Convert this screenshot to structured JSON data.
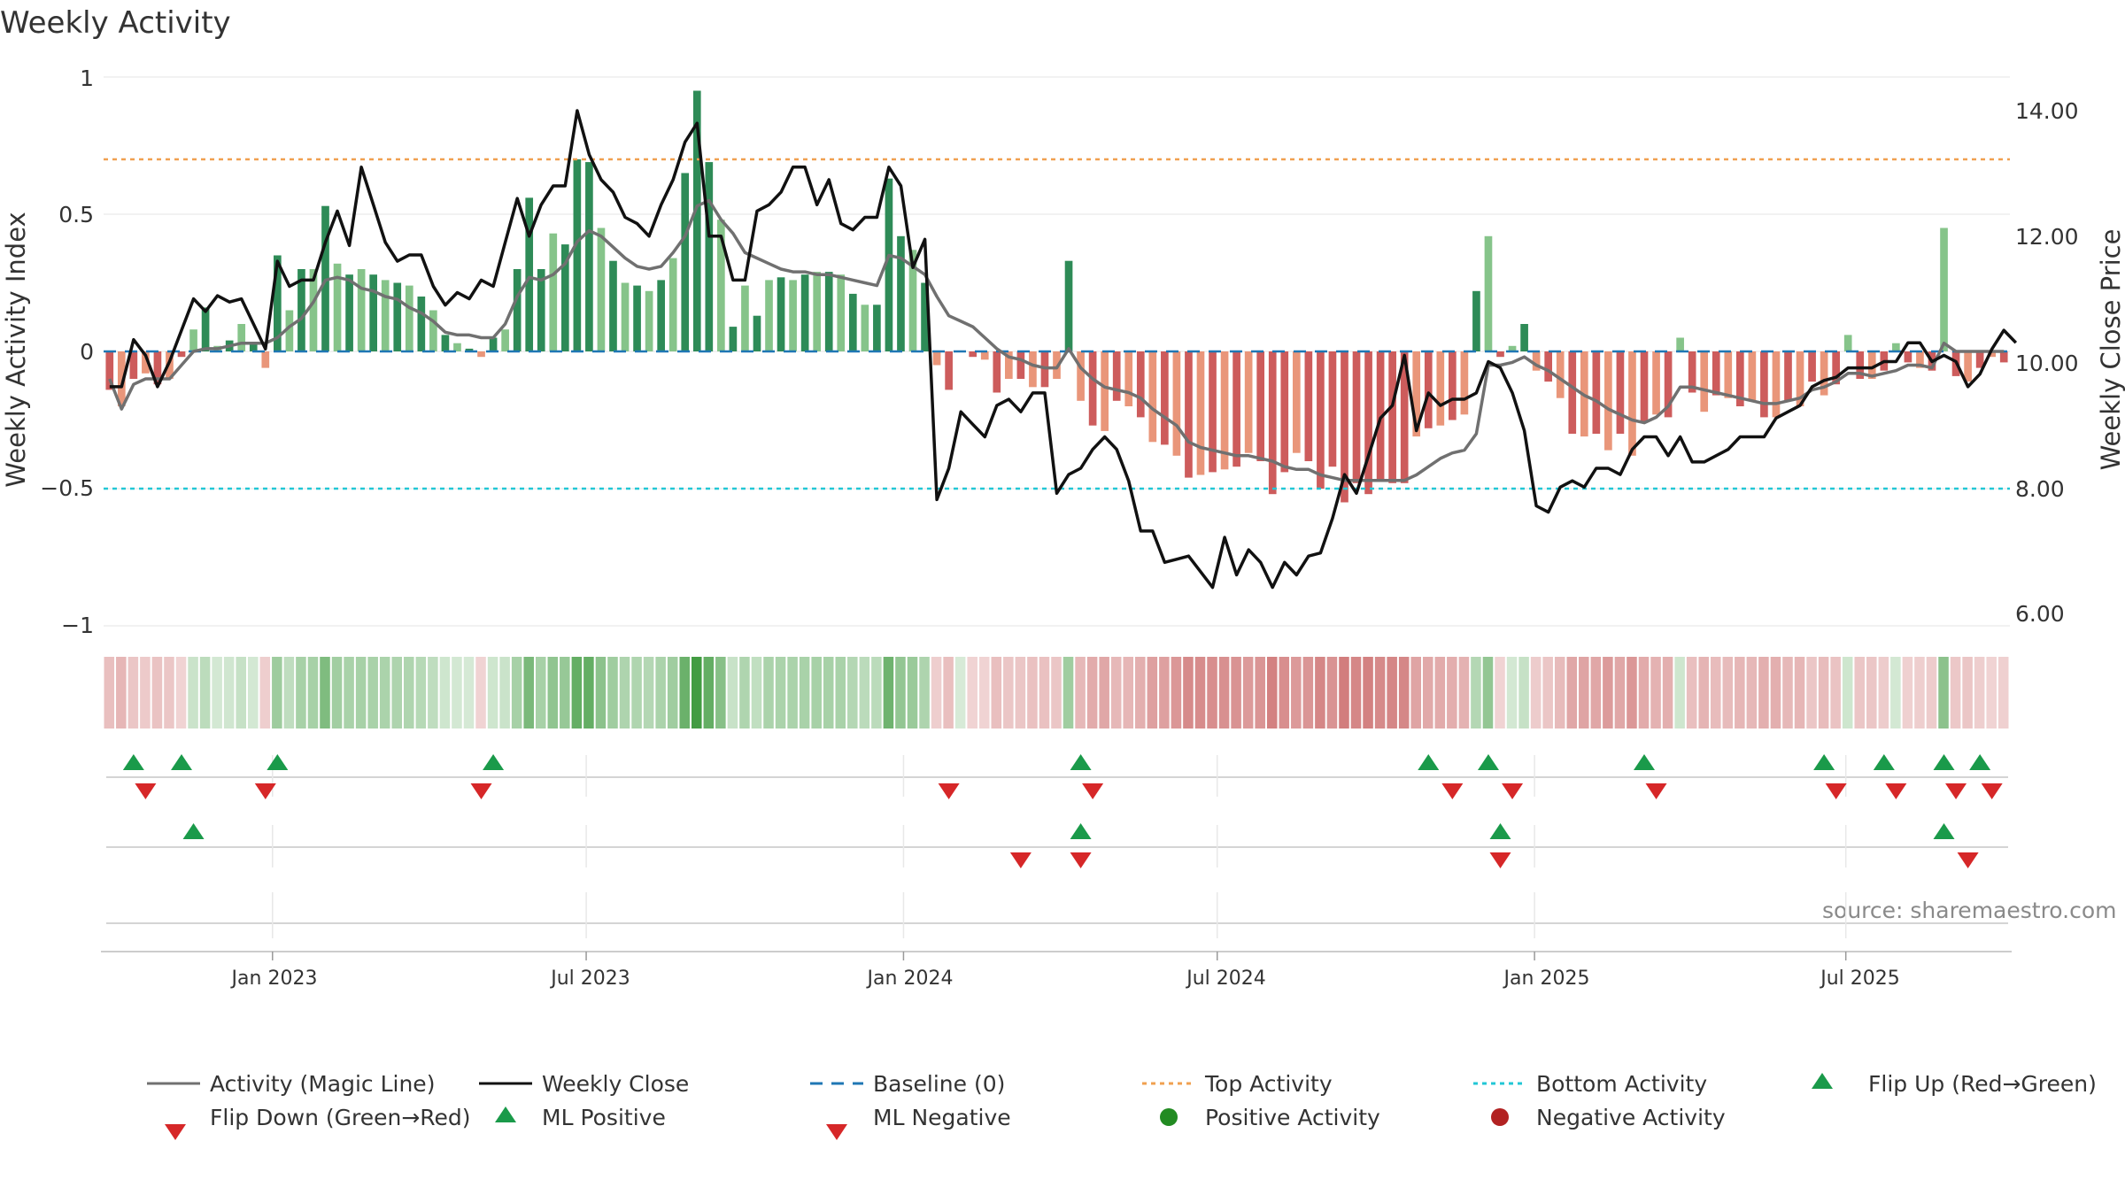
{
  "colors": {
    "pos_dark": "#2e8b57",
    "pos_light": "#86c48a",
    "neg_dark": "#cd5c5c",
    "neg_light": "#e9967a",
    "magic": "#707070",
    "close": "#111111",
    "baseline": "#1f77b4",
    "top": "#f0a050",
    "bottom": "#22c7d6",
    "flip_up": "#1a9a4a",
    "flip_down": "#d62728",
    "pos_dot": "#228b22",
    "neg_dot": "#b22222"
  },
  "chart_data": {
    "type": "bar",
    "title": "Weekly Activity",
    "xlabel": "",
    "ylabel": "Weekly Activity Index",
    "ylabel_right": "Weekly Close Price",
    "ylim": [
      -1,
      1
    ],
    "ylim_right": [
      6.0,
      14.0
    ],
    "y_ticks": [
      "1",
      "0.5",
      "0",
      "−0.5",
      "−1"
    ],
    "y_ticks_right": [
      "14.00",
      "12.00",
      "10.00",
      "8.00",
      "6.00"
    ],
    "x_ticks": [
      "Jan 2023",
      "Jul 2023",
      "Jan 2024",
      "Jul 2024",
      "Jan 2025",
      "Jul 2025"
    ],
    "x_range_weeks": [
      0,
      158
    ],
    "x_tick_weeks": [
      14,
      40,
      66.3,
      92.3,
      118.6,
      144.4
    ],
    "top_activity": 0.7,
    "bottom_activity": -0.5,
    "activity": [
      -0.14,
      -0.2,
      -0.1,
      -0.08,
      -0.12,
      -0.1,
      -0.02,
      0.08,
      0.16,
      0.02,
      0.04,
      0.1,
      0.03,
      -0.06,
      0.35,
      0.15,
      0.3,
      0.3,
      0.53,
      0.32,
      0.28,
      0.3,
      0.28,
      0.26,
      0.25,
      0.24,
      0.2,
      0.15,
      0.06,
      0.03,
      0.01,
      -0.02,
      0.05,
      0.08,
      0.3,
      0.56,
      0.3,
      0.43,
      0.39,
      0.7,
      0.69,
      0.45,
      0.33,
      0.25,
      0.24,
      0.22,
      0.26,
      0.34,
      0.65,
      0.95,
      0.69,
      0.48,
      0.09,
      0.24,
      0.13,
      0.26,
      0.27,
      0.26,
      0.28,
      0.29,
      0.29,
      0.28,
      0.21,
      0.17,
      0.17,
      0.63,
      0.42,
      0.37,
      0.25,
      -0.05,
      -0.14,
      0.0,
      -0.02,
      -0.03,
      -0.15,
      -0.1,
      -0.1,
      -0.13,
      -0.13,
      -0.1,
      0.33,
      -0.18,
      -0.27,
      -0.29,
      -0.18,
      -0.2,
      -0.24,
      -0.33,
      -0.34,
      -0.38,
      -0.46,
      -0.45,
      -0.44,
      -0.43,
      -0.42,
      -0.37,
      -0.4,
      -0.52,
      -0.44,
      -0.37,
      -0.4,
      -0.5,
      -0.42,
      -0.55,
      -0.48,
      -0.52,
      -0.47,
      -0.48,
      -0.48,
      -0.31,
      -0.28,
      -0.27,
      -0.25,
      -0.23,
      0.22,
      0.42,
      -0.02,
      0.02,
      0.1,
      -0.07,
      -0.11,
      -0.17,
      -0.3,
      -0.31,
      -0.3,
      -0.36,
      -0.3,
      -0.38,
      -0.26,
      -0.23,
      -0.24,
      0.05,
      -0.15,
      -0.22,
      -0.16,
      -0.17,
      -0.2,
      -0.18,
      -0.24,
      -0.24,
      -0.18,
      -0.2,
      -0.11,
      -0.16,
      -0.12,
      0.06,
      -0.1,
      -0.1,
      -0.07,
      0.03,
      -0.04,
      -0.06,
      -0.07,
      0.45,
      -0.09,
      -0.11,
      -0.06,
      -0.02,
      -0.04
    ],
    "magic_line": [
      -0.1,
      -0.21,
      -0.12,
      -0.1,
      -0.1,
      -0.1,
      -0.05,
      0.0,
      0.01,
      0.01,
      0.02,
      0.03,
      0.03,
      0.03,
      0.05,
      0.09,
      0.12,
      0.18,
      0.26,
      0.27,
      0.26,
      0.23,
      0.22,
      0.2,
      0.19,
      0.16,
      0.14,
      0.11,
      0.07,
      0.06,
      0.06,
      0.05,
      0.05,
      0.1,
      0.2,
      0.27,
      0.26,
      0.28,
      0.32,
      0.4,
      0.44,
      0.42,
      0.38,
      0.34,
      0.31,
      0.3,
      0.31,
      0.36,
      0.42,
      0.53,
      0.55,
      0.48,
      0.43,
      0.36,
      0.34,
      0.32,
      0.3,
      0.29,
      0.29,
      0.28,
      0.28,
      0.27,
      0.26,
      0.25,
      0.24,
      0.35,
      0.34,
      0.31,
      0.28,
      0.2,
      0.13,
      0.11,
      0.09,
      0.05,
      0.01,
      -0.02,
      -0.03,
      -0.05,
      -0.06,
      -0.06,
      0.01,
      -0.06,
      -0.1,
      -0.13,
      -0.14,
      -0.15,
      -0.17,
      -0.21,
      -0.24,
      -0.27,
      -0.33,
      -0.35,
      -0.36,
      -0.37,
      -0.38,
      -0.38,
      -0.39,
      -0.4,
      -0.42,
      -0.43,
      -0.43,
      -0.45,
      -0.46,
      -0.47,
      -0.47,
      -0.47,
      -0.47,
      -0.47,
      -0.47,
      -0.45,
      -0.42,
      -0.39,
      -0.37,
      -0.36,
      -0.3,
      -0.05,
      -0.05,
      -0.04,
      -0.02,
      -0.05,
      -0.07,
      -0.1,
      -0.13,
      -0.16,
      -0.18,
      -0.21,
      -0.23,
      -0.25,
      -0.26,
      -0.24,
      -0.2,
      -0.13,
      -0.13,
      -0.14,
      -0.15,
      -0.16,
      -0.17,
      -0.18,
      -0.19,
      -0.19,
      -0.18,
      -0.17,
      -0.14,
      -0.13,
      -0.11,
      -0.08,
      -0.08,
      -0.09,
      -0.08,
      -0.07,
      -0.05,
      -0.05,
      -0.06,
      0.03,
      0.0,
      0.0,
      0.0,
      0.0,
      0.0
    ],
    "weekly_close": [
      9.6,
      9.6,
      10.35,
      10.1,
      9.6,
      10.0,
      10.5,
      11.0,
      10.8,
      11.05,
      10.95,
      11.0,
      10.6,
      10.2,
      11.6,
      11.2,
      11.3,
      11.3,
      11.9,
      12.4,
      11.85,
      13.1,
      12.5,
      11.9,
      11.6,
      11.7,
      11.7,
      11.2,
      10.9,
      11.1,
      11.0,
      11.3,
      11.2,
      11.9,
      12.6,
      12.0,
      12.5,
      12.8,
      12.8,
      14.0,
      13.3,
      12.9,
      12.7,
      12.3,
      12.2,
      12.0,
      12.5,
      12.9,
      13.5,
      13.8,
      12.0,
      12.0,
      11.3,
      11.3,
      12.4,
      12.5,
      12.7,
      13.1,
      13.1,
      12.5,
      12.9,
      12.2,
      12.1,
      12.3,
      12.3,
      13.1,
      12.8,
      11.5,
      11.95,
      7.8,
      8.3,
      9.2,
      9.0,
      8.8,
      9.3,
      9.4,
      9.2,
      9.5,
      9.5,
      7.9,
      8.2,
      8.3,
      8.6,
      8.8,
      8.6,
      8.1,
      7.3,
      7.3,
      6.8,
      6.85,
      6.9,
      6.65,
      6.4,
      7.2,
      6.6,
      7.0,
      6.8,
      6.4,
      6.8,
      6.6,
      6.9,
      6.95,
      7.5,
      8.2,
      7.9,
      8.5,
      9.1,
      9.3,
      10.1,
      8.9,
      9.5,
      9.3,
      9.4,
      9.4,
      9.5,
      10.0,
      9.9,
      9.5,
      8.9,
      7.7,
      7.6,
      8.0,
      8.1,
      8.0,
      8.3,
      8.3,
      8.2,
      8.6,
      8.8,
      8.8,
      8.5,
      8.8,
      8.4,
      8.4,
      8.5,
      8.6,
      8.8,
      8.8,
      8.8,
      9.1,
      9.2,
      9.3,
      9.6,
      9.7,
      9.75,
      9.9,
      9.9,
      9.9,
      10.0,
      10.0,
      10.3,
      10.3,
      10.0,
      10.1,
      10.0,
      9.6,
      9.8,
      10.2,
      10.5,
      10.3
    ],
    "events": {
      "row1_flip_up_weeks": [
        2,
        6,
        14,
        32,
        81,
        110,
        115,
        128,
        143,
        148,
        153,
        156
      ],
      "row1_flip_down_weeks": [
        3,
        13,
        31,
        70,
        82,
        112,
        117,
        129,
        144,
        149,
        154,
        157
      ],
      "row2_ml_positive_weeks": [
        7,
        81,
        116,
        153
      ],
      "row2_ml_negative_weeks": [
        76,
        81,
        116,
        155
      ]
    }
  },
  "legend": {
    "activity": "Activity (Magic Line)",
    "close": "Weekly Close",
    "baseline": "Baseline (0)",
    "top": "Top Activity",
    "bottom": "Bottom Activity",
    "flip_up": "Flip Up (Red→Green)",
    "flip_down": "Flip Down (Green→Red)",
    "ml_pos": "ML Positive",
    "ml_neg": "ML Negative",
    "pos_act": "Positive Activity",
    "neg_act": "Negative Activity"
  },
  "source": "source: sharemaestro.com"
}
